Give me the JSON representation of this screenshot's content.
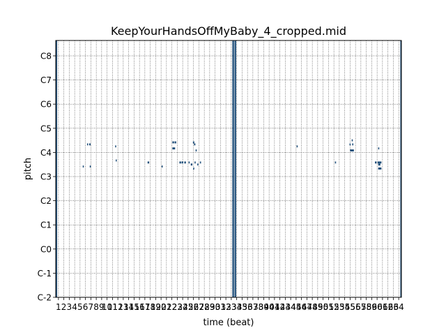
{
  "chart_data": {
    "type": "heatmap",
    "subtype": "piano-roll",
    "title": "KeepYourHandsOffMyBaby_4_cropped.mid",
    "xlabel": "time (beat)",
    "ylabel": "pitch",
    "xlim": [
      0.5,
      64.5
    ],
    "ylim": [
      0,
      127
    ],
    "x_ticks": [
      1,
      2,
      3,
      4,
      5,
      6,
      7,
      8,
      9,
      10,
      11,
      12,
      13,
      14,
      15,
      16,
      17,
      18,
      19,
      20,
      21,
      22,
      23,
      24,
      25,
      26,
      27,
      28,
      29,
      30,
      31,
      32,
      33,
      34,
      35,
      36,
      37,
      38,
      39,
      40,
      41,
      42,
      43,
      44,
      45,
      46,
      47,
      48,
      49,
      50,
      51,
      52,
      53,
      54,
      55,
      56,
      57,
      58,
      59,
      60,
      61,
      62,
      63,
      64
    ],
    "y_ticks": [
      {
        "label": "C-2",
        "pitch": 0
      },
      {
        "label": "C-1",
        "pitch": 12
      },
      {
        "label": "C0",
        "pitch": 24
      },
      {
        "label": "C1",
        "pitch": 36
      },
      {
        "label": "C2",
        "pitch": 48
      },
      {
        "label": "C3",
        "pitch": 60
      },
      {
        "label": "C4",
        "pitch": 72
      },
      {
        "label": "C5",
        "pitch": 84
      },
      {
        "label": "C6",
        "pitch": 96
      },
      {
        "label": "C7",
        "pitch": 108
      },
      {
        "label": "C8",
        "pitch": 120
      }
    ],
    "grid": true,
    "note_color": "#1f4e79",
    "full_height_bars": [
      {
        "start": 0.5,
        "end": 0.75
      },
      {
        "start": 33.2,
        "end": 33.5
      },
      {
        "start": 33.6,
        "end": 33.9
      },
      {
        "start": 64.3,
        "end": 64.5
      }
    ],
    "notes": [
      {
        "start": 5.5,
        "end": 5.65,
        "pitch": 65
      },
      {
        "start": 6.3,
        "end": 6.5,
        "pitch": 76
      },
      {
        "start": 6.7,
        "end": 6.95,
        "pitch": 76
      },
      {
        "start": 6.8,
        "end": 7.0,
        "pitch": 65
      },
      {
        "start": 11.5,
        "end": 11.65,
        "pitch": 75
      },
      {
        "start": 11.6,
        "end": 11.75,
        "pitch": 68
      },
      {
        "start": 17.5,
        "end": 17.8,
        "pitch": 67
      },
      {
        "start": 20.1,
        "end": 20.3,
        "pitch": 65
      },
      {
        "start": 22.1,
        "end": 22.4,
        "pitch": 77
      },
      {
        "start": 22.5,
        "end": 22.8,
        "pitch": 77
      },
      {
        "start": 22.1,
        "end": 22.6,
        "pitch": 74
      },
      {
        "start": 23.4,
        "end": 23.7,
        "pitch": 67
      },
      {
        "start": 23.8,
        "end": 24.1,
        "pitch": 67
      },
      {
        "start": 24.3,
        "end": 24.6,
        "pitch": 67
      },
      {
        "start": 25.1,
        "end": 25.3,
        "pitch": 67
      },
      {
        "start": 25.5,
        "end": 25.8,
        "pitch": 66
      },
      {
        "start": 25.9,
        "end": 26.15,
        "pitch": 77
      },
      {
        "start": 26.1,
        "end": 26.35,
        "pitch": 76
      },
      {
        "start": 25.95,
        "end": 26.1,
        "pitch": 64
      },
      {
        "start": 26.2,
        "end": 26.4,
        "pitch": 67
      },
      {
        "start": 26.4,
        "end": 26.55,
        "pitch": 73
      },
      {
        "start": 26.7,
        "end": 26.9,
        "pitch": 66
      },
      {
        "start": 27.2,
        "end": 27.4,
        "pitch": 67
      },
      {
        "start": 45.1,
        "end": 45.3,
        "pitch": 75
      },
      {
        "start": 52.2,
        "end": 52.4,
        "pitch": 67
      },
      {
        "start": 54.9,
        "end": 55.1,
        "pitch": 76
      },
      {
        "start": 55.3,
        "end": 55.5,
        "pitch": 78
      },
      {
        "start": 55.4,
        "end": 55.6,
        "pitch": 76
      },
      {
        "start": 55.0,
        "end": 55.7,
        "pitch": 73
      },
      {
        "start": 59.6,
        "end": 59.9,
        "pitch": 67
      },
      {
        "start": 60.2,
        "end": 60.35,
        "pitch": 74
      },
      {
        "start": 60.2,
        "end": 60.6,
        "pitch": 66
      },
      {
        "start": 60.1,
        "end": 60.5,
        "pitch": 67
      },
      {
        "start": 60.5,
        "end": 60.8,
        "pitch": 67
      },
      {
        "start": 60.2,
        "end": 60.8,
        "pitch": 64
      }
    ]
  }
}
